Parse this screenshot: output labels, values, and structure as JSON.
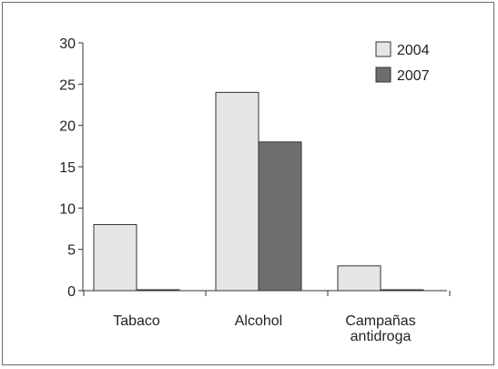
{
  "chart_data": {
    "type": "bar",
    "categories": [
      "Tabaco",
      "Alcohol",
      "Campañas antidroga"
    ],
    "category_lines": [
      [
        "Tabaco"
      ],
      [
        "Alcohol"
      ],
      [
        "Campañas",
        "antidroga"
      ]
    ],
    "series": [
      {
        "name": "2004",
        "values": [
          8,
          24,
          3
        ],
        "color": "#e6e6e6"
      },
      {
        "name": "2007",
        "values": [
          0,
          18,
          0
        ],
        "color": "#6e6e70"
      }
    ],
    "ylim": [
      0,
      30
    ],
    "yticks": [
      0,
      5,
      10,
      15,
      20,
      25,
      30
    ],
    "title": "",
    "xlabel": "",
    "ylabel": "",
    "legend_position": "top-right",
    "grid": false
  }
}
